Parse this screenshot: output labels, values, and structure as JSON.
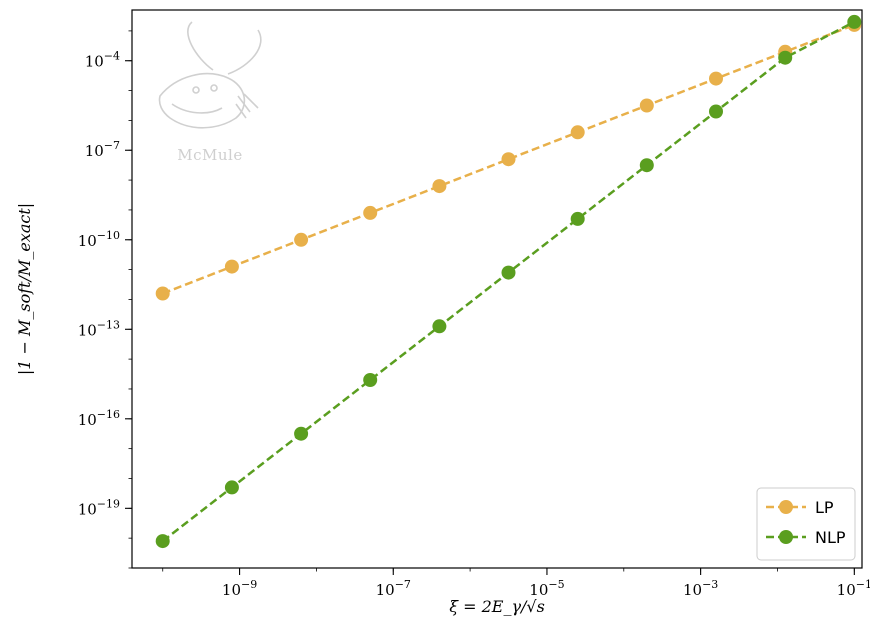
{
  "chart_data": {
    "type": "line",
    "title": "",
    "xlabel": "ξ = 2E_γ/√s",
    "ylabel": "|1 − M_soft/M_exact|",
    "xscale": "log",
    "yscale": "log",
    "xlim_exponent": [
      -10.4,
      -0.9
    ],
    "ylim_exponent": [
      -21,
      -2.3
    ],
    "x_ticks": [
      {
        "exp": -9,
        "label": "10",
        "sup": "−9"
      },
      {
        "exp": -7,
        "label": "10",
        "sup": "−7"
      },
      {
        "exp": -5,
        "label": "10",
        "sup": "−5"
      },
      {
        "exp": -3,
        "label": "10",
        "sup": "−3"
      },
      {
        "exp": -1,
        "label": "10",
        "sup": "−1"
      }
    ],
    "y_ticks": [
      {
        "exp": -4,
        "label": "10",
        "sup": "−4"
      },
      {
        "exp": -7,
        "label": "10",
        "sup": "−7"
      },
      {
        "exp": -10,
        "label": "10",
        "sup": "−10"
      },
      {
        "exp": -13,
        "label": "10",
        "sup": "−13"
      },
      {
        "exp": -16,
        "label": "10",
        "sup": "−16"
      },
      {
        "exp": -19,
        "label": "10",
        "sup": "−19"
      }
    ],
    "x_exponents": [
      -10,
      -9.1,
      -8.2,
      -7.3,
      -6.4,
      -5.5,
      -4.6,
      -3.7,
      -2.8,
      -1.9,
      -1.0
    ],
    "series": [
      {
        "name": "LP",
        "color": "#e8b04a",
        "marker": "circle",
        "linestyle": "dashed",
        "y_exponents": [
          -11.8,
          -10.9,
          -10.0,
          -9.1,
          -8.2,
          -7.3,
          -6.4,
          -5.5,
          -4.6,
          -3.7,
          -2.8
        ]
      },
      {
        "name": "NLP",
        "color": "#5a9e1f",
        "marker": "circle",
        "linestyle": "dashed",
        "y_exponents": [
          -20.1,
          -18.3,
          -16.5,
          -14.7,
          -12.9,
          -11.1,
          -9.3,
          -7.5,
          -5.7,
          -3.9,
          -2.7
        ]
      }
    ],
    "legend_position": "bottom-right",
    "grid": false
  },
  "watermark": {
    "text": "McMule",
    "icon": "mcmule-logo-icon"
  }
}
